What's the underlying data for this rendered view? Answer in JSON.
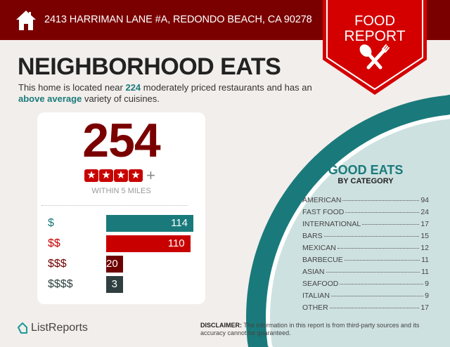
{
  "header": {
    "address": "2413 HARRIMAN LANE #A, REDONDO BEACH, CA 90278",
    "icon": "home-icon"
  },
  "ribbon": {
    "line1": "FOOD",
    "line2": "REPORT",
    "icon": "spoon-fork-icon"
  },
  "title": "NEIGHBORHOOD EATS",
  "subtitle": {
    "pre": "This home is located near ",
    "count": "224",
    "mid": " moderately priced restaurants and has an ",
    "rating": "above average",
    "post": " variety of cuisines."
  },
  "summary": {
    "total": "254",
    "stars": 4,
    "plus": "+",
    "within": "WITHIN 5 MILES"
  },
  "price_levels": [
    {
      "label": "$",
      "value": 114,
      "color": "#1a7a7b"
    },
    {
      "label": "$$",
      "value": 110,
      "color": "#c80000"
    },
    {
      "label": "$$$",
      "value": 20,
      "color": "#6e0000"
    },
    {
      "label": "$$$$",
      "value": 3,
      "color": "#2f3f3f"
    }
  ],
  "categories": {
    "title": "GOOD EATS",
    "subtitle": "BY CATEGORY",
    "items": [
      {
        "name": "AMERICAN",
        "count": "94"
      },
      {
        "name": "FAST FOOD",
        "count": "24"
      },
      {
        "name": "INTERNATIONAL",
        "count": "17"
      },
      {
        "name": "BARS",
        "count": "15"
      },
      {
        "name": "MEXICAN",
        "count": "12"
      },
      {
        "name": "BARBECUE",
        "count": "11"
      },
      {
        "name": "ASIAN",
        "count": "11"
      },
      {
        "name": "SEAFOOD",
        "count": "9"
      },
      {
        "name": "ITALIAN",
        "count": "9"
      },
      {
        "name": "OTHER",
        "count": "17"
      }
    ]
  },
  "footer": {
    "logo": "ListReports",
    "disclaimer_label": "DISCLAIMER:",
    "disclaimer_text": " The information in this report is from third-party sources and its accuracy cannot be guaranteed."
  },
  "colors": {
    "dark_red": "#7a0000",
    "red": "#c80000",
    "teal": "#1a7a7b",
    "light_teal": "#cde1e0"
  }
}
